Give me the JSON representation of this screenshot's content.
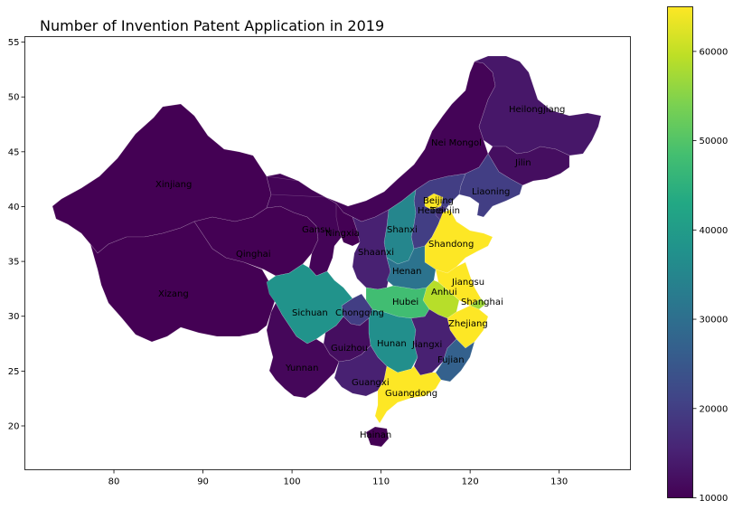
{
  "title": "Number of Invention Patent Application in 2019",
  "colormap": "viridis",
  "chart_data": {
    "type": "choropleth",
    "title": "Number of Invention Patent Application in 2019",
    "xlim": [
      70,
      138
    ],
    "ylim": [
      16,
      55.5
    ],
    "x_ticks": [
      80,
      90,
      100,
      110,
      120,
      130
    ],
    "y_ticks": [
      20,
      25,
      30,
      35,
      40,
      45,
      50,
      55
    ],
    "colorbar": {
      "min": 10000,
      "max": 65000,
      "ticks": [
        10000,
        20000,
        30000,
        40000,
        50000,
        60000
      ]
    },
    "regions": [
      {
        "name": "Heilongjiang",
        "value": 13500,
        "lon": 128.5,
        "lat": 48.6
      },
      {
        "name": "Jilin",
        "value": 12000,
        "lon": 126.0,
        "lat": 43.6
      },
      {
        "name": "Liaoning",
        "value": 20000,
        "lon": 122.5,
        "lat": 41.3
      },
      {
        "name": "Nei Mongol",
        "value": 10500,
        "lon": 114.0,
        "lat": 44.0
      },
      {
        "name": "Beijing",
        "value": 65000,
        "lon": 116.4,
        "lat": 40.2
      },
      {
        "name": "Tianjin",
        "value": 18000,
        "lon": 117.3,
        "lat": 39.3
      },
      {
        "name": "Hebei",
        "value": 20000,
        "lon": 115.3,
        "lat": 38.5
      },
      {
        "name": "Shanxi",
        "value": 35000,
        "lon": 112.3,
        "lat": 37.6
      },
      {
        "name": "Shandong",
        "value": 65000,
        "lon": 118.0,
        "lat": 36.3
      },
      {
        "name": "Henan",
        "value": 31000,
        "lon": 113.6,
        "lat": 33.9
      },
      {
        "name": "Jiangsu",
        "value": 65000,
        "lon": 119.5,
        "lat": 33.0
      },
      {
        "name": "Anhui",
        "value": 59000,
        "lon": 117.2,
        "lat": 31.7
      },
      {
        "name": "Shanghai",
        "value": 57000,
        "lon": 121.4,
        "lat": 31.1
      },
      {
        "name": "Zhejiang",
        "value": 65000,
        "lon": 120.0,
        "lat": 29.2
      },
      {
        "name": "Hubei",
        "value": 48000,
        "lon": 112.3,
        "lat": 31.0
      },
      {
        "name": "Hunan",
        "value": 37000,
        "lon": 111.7,
        "lat": 27.6
      },
      {
        "name": "Jiangxi",
        "value": 15000,
        "lon": 115.8,
        "lat": 27.6
      },
      {
        "name": "Fujian",
        "value": 27000,
        "lon": 118.0,
        "lat": 26.1
      },
      {
        "name": "Guangdong",
        "value": 65000,
        "lon": 113.5,
        "lat": 23.3
      },
      {
        "name": "Guangxi",
        "value": 15000,
        "lon": 108.8,
        "lat": 23.8
      },
      {
        "name": "Hainan",
        "value": 10000,
        "lon": 109.8,
        "lat": 19.3
      },
      {
        "name": "Chongqing",
        "value": 20000,
        "lon": 107.5,
        "lat": 30.0
      },
      {
        "name": "Sichuan",
        "value": 38000,
        "lon": 102.5,
        "lat": 30.3
      },
      {
        "name": "Guizhou",
        "value": 12000,
        "lon": 106.7,
        "lat": 26.8
      },
      {
        "name": "Yunnan",
        "value": 11000,
        "lon": 101.5,
        "lat": 24.8
      },
      {
        "name": "Xizang",
        "value": 10000,
        "lon": 88.5,
        "lat": 31.5
      },
      {
        "name": "Xinjiang",
        "value": 10000,
        "lon": 85.5,
        "lat": 41.5
      },
      {
        "name": "Qinghai",
        "value": 10000,
        "lon": 96.0,
        "lat": 35.5
      },
      {
        "name": "Gansu",
        "value": 10500,
        "lon": 102.5,
        "lat": 37.5
      },
      {
        "name": "Ningxia",
        "value": 10000,
        "lon": 106.0,
        "lat": 37.3
      },
      {
        "name": "Shaanxi",
        "value": 15000,
        "lon": 108.8,
        "lat": 34.6
      }
    ]
  },
  "labels": {
    "Heilongjiang": "Heilongjiang",
    "Jilin": "Jilin",
    "Liaoning": "Liaoning",
    "NeiMongol": "Nei Mongol",
    "Beijing": "Beijing",
    "Tianjin": "Tianjin",
    "Hebei": "Hebei",
    "Shanxi": "Shanxi",
    "Shandong": "Shandong",
    "Henan": "Henan",
    "Jiangsu": "Jiangsu",
    "Anhui": "Anhui",
    "Shanghai": "Shanghai",
    "Zhejiang": "Zhejiang",
    "Hubei": "Hubei",
    "Hunan": "Hunan",
    "Jiangxi": "Jiangxi",
    "Fujian": "Fujian",
    "Guangdong": "Guangdong",
    "Guangxi": "Guangxi",
    "Hainan": "Hainan",
    "Chongqing": "Chongqing",
    "Sichuan": "Sichuan",
    "Guizhou": "Guizhou",
    "Yunnan": "Yunnan",
    "Xizang": "Xizang",
    "Xinjiang": "Xinjiang",
    "Qinghai": "Qinghai",
    "Gansu": "Gansu",
    "Ningxia": "Ningxia",
    "Shaanxi": "Shaanxi"
  }
}
